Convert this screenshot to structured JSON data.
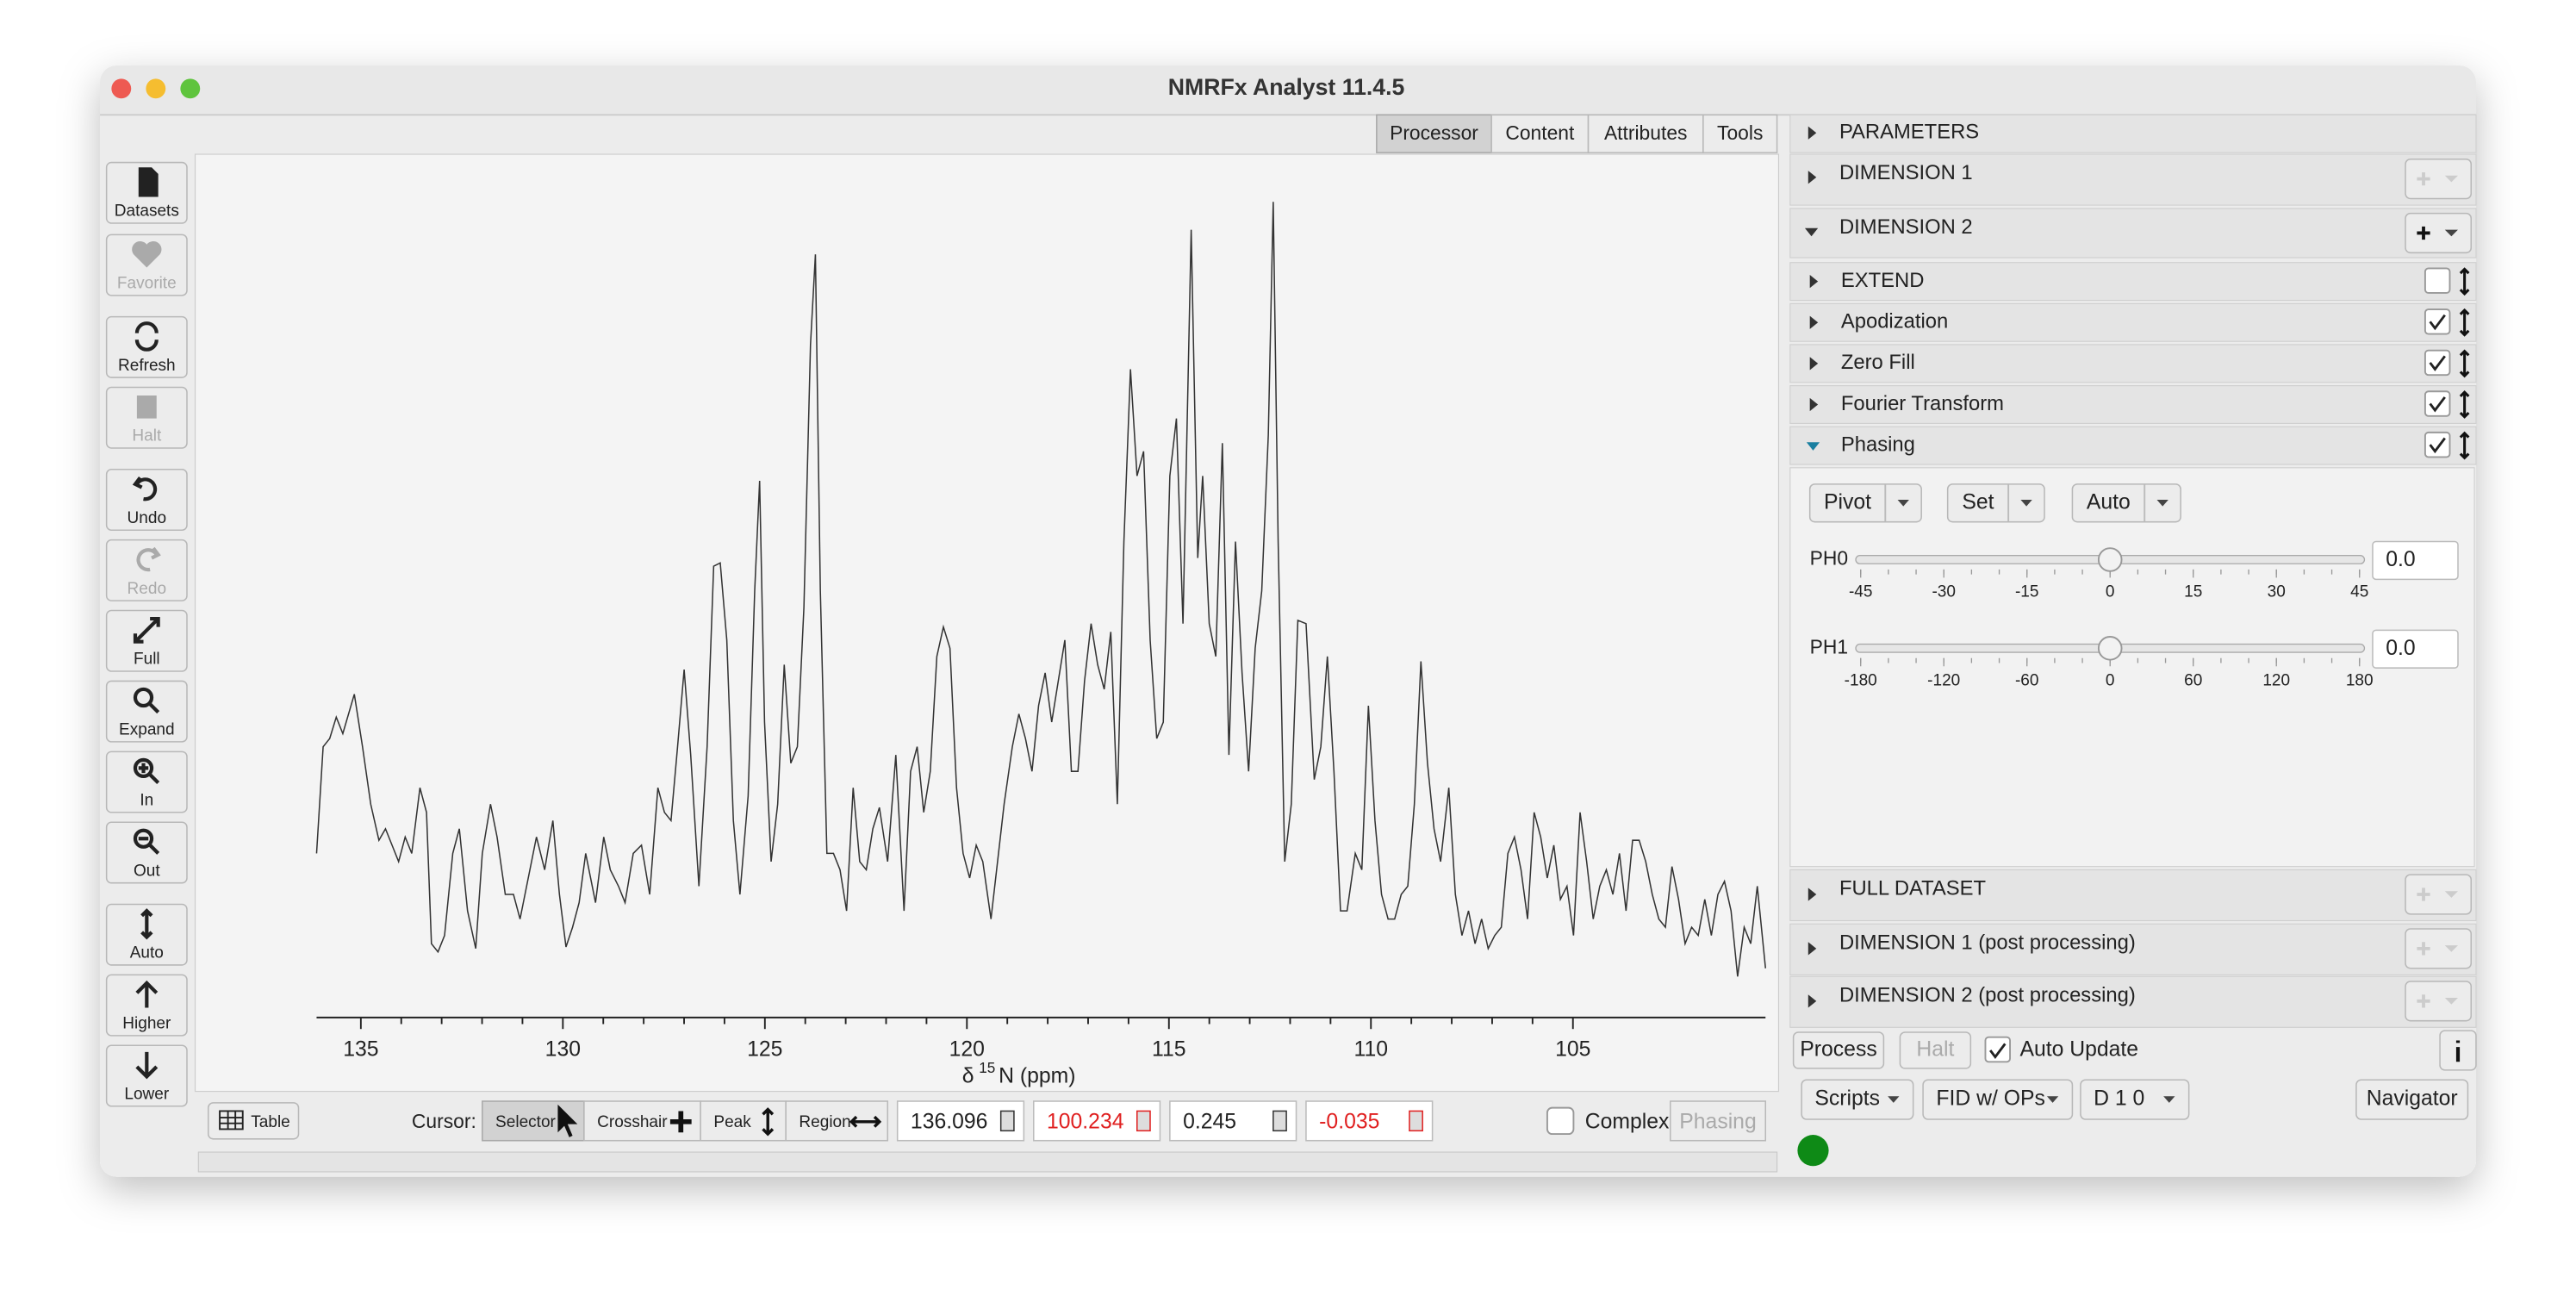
{
  "window": {
    "title": "NMRFx Analyst 11.4.5"
  },
  "tabs": [
    "Processor",
    "Content",
    "Attributes",
    "Tools"
  ],
  "toolbar": [
    "Datasets",
    "Favorite",
    "Refresh",
    "Halt",
    "Undo",
    "Redo",
    "Full",
    "Expand",
    "In",
    "Out",
    "Auto",
    "Higher",
    "Lower"
  ],
  "spectrum_axis": {
    "x_label": {
      "symbol": "δ",
      "isotope": "15",
      "unit": "N (ppm)"
    },
    "xlim": [
      136.096,
      100.234
    ],
    "xticks": [
      135,
      130,
      125,
      120,
      115,
      110,
      105
    ]
  },
  "statusbar": {
    "table": "Table",
    "cursor_label": "Cursor:",
    "cursor_modes": [
      "Selector",
      "Crosshair",
      "Peak",
      "Region"
    ],
    "fields": [
      "136.096",
      "100.234",
      "0.245",
      "-0.035"
    ],
    "complex": "Complex",
    "phasing": "Phasing"
  },
  "panel": {
    "sections_top": [
      "PARAMETERS",
      "DIMENSION 1",
      "DIMENSION 2"
    ],
    "operations": [
      "EXTEND",
      "Apodization",
      "Zero Fill",
      "Fourier Transform",
      "Phasing"
    ],
    "phasing": {
      "buttons": [
        "Pivot",
        "Set",
        "Auto"
      ],
      "ph0": {
        "label": "PH0",
        "ticks": [
          -45,
          -30,
          -15,
          0,
          15,
          30,
          45
        ],
        "value": {
          "value": 0,
          "label": "0.0"
        }
      },
      "ph1": {
        "label": "PH1",
        "ticks": [
          -180,
          -120,
          -60,
          0,
          60,
          120,
          180
        ],
        "value": {
          "value": 0,
          "label": "0.0"
        }
      }
    },
    "sections_bottom": [
      "FULL DATASET",
      "DIMENSION 1 (post processing)",
      "DIMENSION 2 (post processing)"
    ],
    "actions": [
      "Process",
      "Halt",
      "Auto Update"
    ],
    "menus": [
      "Scripts",
      "FID w/ OPs",
      "D 1 0"
    ],
    "navigator": "Navigator"
  }
}
